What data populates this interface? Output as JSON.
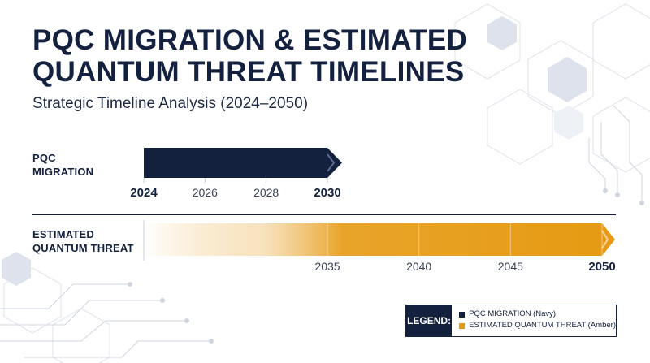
{
  "header": {
    "title": "PQC MIGRATION & ESTIMATED QUANTUM THREAT TIMELINES",
    "subtitle": "Strategic Timeline Analysis (2024–2050)"
  },
  "colors": {
    "navy": "#13213f",
    "amber": "#e69a12",
    "decor": "#dfe3ea"
  },
  "rows": {
    "pqc": {
      "label_line1": "PQC",
      "label_line2": "MIGRATION"
    },
    "threat": {
      "label_line1": "ESTIMATED",
      "label_line2": "QUANTUM THREAT"
    }
  },
  "chart_data": {
    "type": "bar",
    "series": [
      {
        "name": "PQC MIGRATION",
        "start": 2024,
        "end": 2030,
        "ticks": [
          "2024",
          "2026",
          "2028",
          "2030"
        ],
        "bold_ticks": [
          "2024",
          "2030"
        ]
      },
      {
        "name": "ESTIMATED QUANTUM THREAT",
        "start": 2035,
        "end": 2050,
        "ticks": [
          "2035",
          "2040",
          "2045",
          "2050"
        ],
        "bold_ticks": [
          "2050"
        ]
      }
    ],
    "xlim": [
      2024,
      2050
    ]
  },
  "legend": {
    "title": "LEGEND:",
    "items": [
      {
        "label": "PQC MIGRATION (Navy)",
        "color": "#13213f"
      },
      {
        "label": "ESTIMATED QUANTUM THREAT (Amber)",
        "color": "#e69a12"
      }
    ]
  }
}
